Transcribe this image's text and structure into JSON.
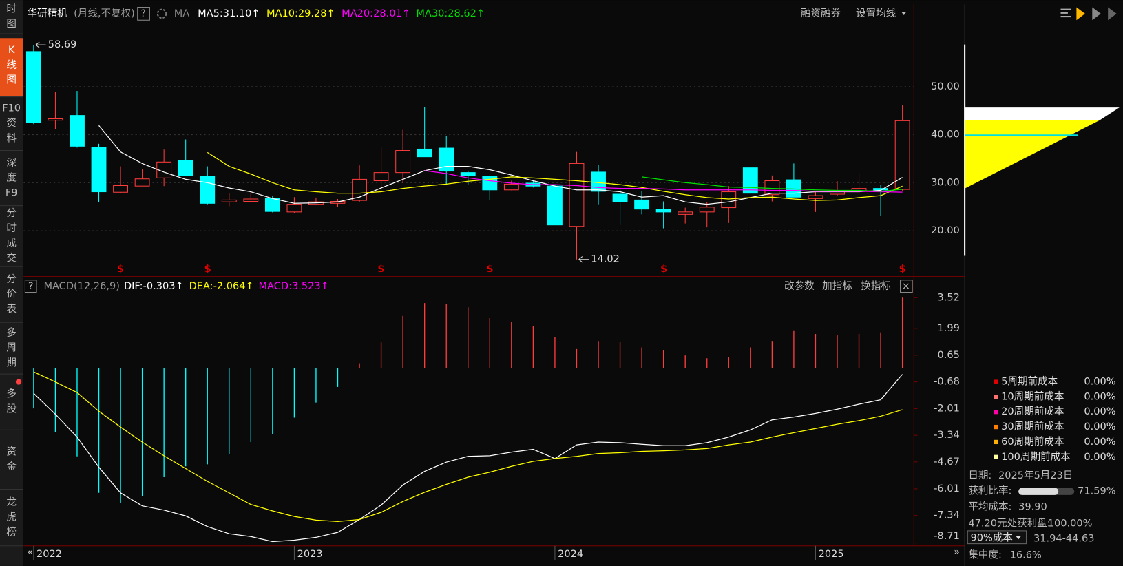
{
  "sidebar": {
    "tabs": [
      [
        "时",
        "图"
      ],
      [
        "K",
        "线",
        "图"
      ],
      [
        "F10",
        "资",
        "料"
      ],
      [
        "深",
        "度",
        "F9"
      ],
      [
        "分",
        "时",
        "成",
        "交"
      ],
      [
        "分",
        "价",
        "表"
      ],
      [
        "多",
        "周",
        "期"
      ],
      [
        "多",
        "股"
      ],
      [
        "资",
        "金"
      ],
      [
        "龙",
        "虎",
        "榜"
      ]
    ],
    "active_tab": 1
  },
  "header": {
    "stock": "华研精机",
    "period": "(月线,不复权)",
    "help": "?",
    "ma_label": "MA",
    "links": [
      "融资融券",
      "设置均线"
    ]
  },
  "macd_header": {
    "help": "?",
    "links": [
      "改参数",
      "加指标",
      "换指标"
    ],
    "close": "×"
  },
  "chart_data": [
    {
      "type": "candlestick",
      "grid": true,
      "up_color": "#ff3c3c",
      "down_color": "#00ffff",
      "open": [
        57.3,
        43.0,
        44.0,
        37.3,
        28.0,
        29.3,
        31.0,
        34.6,
        31.3,
        26.0,
        26.1,
        26.7,
        23.9,
        25.5,
        25.7,
        26.3,
        30.4,
        32.1,
        37.0,
        37.2,
        32.1,
        31.3,
        28.5,
        29.9,
        29.3,
        20.9,
        32.2,
        27.6,
        26.4,
        24.5,
        23.4,
        23.9,
        24.8,
        33.1,
        27.5,
        30.6,
        26.7,
        27.6,
        28.2,
        28.8,
        28.6
      ],
      "high": [
        58.69,
        48.9,
        49.1,
        38.1,
        33.4,
        32.8,
        36.9,
        39.0,
        33.4,
        27.8,
        28.0,
        27.3,
        27.0,
        26.9,
        26.6,
        33.6,
        37.5,
        41.0,
        45.7,
        39.7,
        32.5,
        31.5,
        30.4,
        30.4,
        29.6,
        36.4,
        33.7,
        29.0,
        28.2,
        26.1,
        24.8,
        26.0,
        29.3,
        33.1,
        31.5,
        34.0,
        28.2,
        30.3,
        32.0,
        29.5,
        46.1
      ],
      "low": [
        42.2,
        41.2,
        37.3,
        26.0,
        27.8,
        29.3,
        29.3,
        31.5,
        25.5,
        25.1,
        25.9,
        23.8,
        23.7,
        25.3,
        25.0,
        26.0,
        28.1,
        29.9,
        35.4,
        29.7,
        29.6,
        26.4,
        28.4,
        29.0,
        21.2,
        14.02,
        25.5,
        21.2,
        23.4,
        20.5,
        21.5,
        20.7,
        21.6,
        27.8,
        26.1,
        27.0,
        23.9,
        27.3,
        27.6,
        23.1,
        28.3
      ],
      "close": [
        42.5,
        43.3,
        37.6,
        28.1,
        29.4,
        30.8,
        34.3,
        31.5,
        25.7,
        26.4,
        26.6,
        24.0,
        25.5,
        26.0,
        26.1,
        30.7,
        32.1,
        36.7,
        35.4,
        32.4,
        31.5,
        28.5,
        29.7,
        29.3,
        21.2,
        34.0,
        28.2,
        26.1,
        24.5,
        23.9,
        23.9,
        24.9,
        28.1,
        27.8,
        30.4,
        27.0,
        27.3,
        28.2,
        28.8,
        28.5,
        42.9
      ],
      "series": [
        {
          "name": "MA5:31.10↑",
          "color": "#ffffff",
          "values": [
            null,
            null,
            null,
            41.9,
            36.4,
            34.0,
            32.2,
            30.7,
            30.0,
            28.9,
            28.1,
            26.7,
            25.7,
            25.8,
            26.0,
            27.0,
            28.9,
            30.7,
            32.5,
            33.4,
            33.4,
            32.7,
            31.6,
            30.4,
            29.3,
            28.5,
            28.5,
            28.1,
            27.0,
            27.3,
            26.0,
            25.5,
            26.0,
            26.9,
            27.8,
            27.8,
            28.1,
            28.1,
            28.1,
            28.4,
            31.1
          ]
        },
        {
          "name": "MA10:29.28↑",
          "color": "#ffff00",
          "values": [
            null,
            null,
            null,
            null,
            null,
            null,
            null,
            null,
            36.3,
            33.4,
            31.8,
            30.0,
            28.5,
            28.1,
            27.8,
            27.8,
            28.1,
            28.8,
            29.3,
            29.7,
            30.3,
            30.7,
            31.2,
            31.0,
            30.7,
            30.4,
            30.0,
            29.6,
            29.0,
            28.2,
            27.5,
            26.9,
            26.6,
            26.9,
            27.0,
            26.6,
            26.3,
            26.4,
            26.9,
            27.3,
            29.28
          ]
        },
        {
          "name": "MA20:28.01↑",
          "color": "#ff00ff",
          "values": [
            null,
            null,
            null,
            null,
            null,
            null,
            null,
            null,
            null,
            null,
            null,
            null,
            null,
            null,
            null,
            null,
            null,
            null,
            32.5,
            31.9,
            31.0,
            30.4,
            29.9,
            29.6,
            29.6,
            29.4,
            29.0,
            28.8,
            28.8,
            28.7,
            28.5,
            28.5,
            28.5,
            28.5,
            28.4,
            28.4,
            28.2,
            28.2,
            28.2,
            28.1,
            28.01
          ]
        },
        {
          "name": "MA30:28.62↑",
          "color": "#00e000",
          "values": [
            null,
            null,
            null,
            null,
            null,
            null,
            null,
            null,
            null,
            null,
            null,
            null,
            null,
            null,
            null,
            null,
            null,
            null,
            null,
            null,
            null,
            null,
            null,
            null,
            null,
            null,
            null,
            null,
            31.2,
            30.6,
            30.0,
            29.6,
            29.1,
            29.0,
            28.8,
            28.7,
            28.5,
            28.4,
            28.4,
            28.2,
            28.62
          ]
        }
      ],
      "ylim": [
        10.6,
        62.8
      ],
      "yticks": [
        {
          "value": 20,
          "label": "20.00"
        },
        {
          "value": 30,
          "label": "30.00"
        },
        {
          "value": 40,
          "label": "40.00"
        },
        {
          "value": 50,
          "label": "50.00"
        }
      ]
    },
    {
      "type": "macd",
      "title": "MACD(12,26,9)",
      "grid": false,
      "categories": [
        "2022",
        null,
        null,
        null,
        null,
        null,
        null,
        null,
        null,
        null,
        null,
        null,
        "2023",
        null,
        null,
        null,
        null,
        null,
        null,
        null,
        null,
        null,
        null,
        null,
        "2024",
        null,
        null,
        null,
        null,
        null,
        null,
        null,
        null,
        null,
        null,
        null,
        "2025",
        null,
        null,
        null,
        null
      ],
      "series": [
        {
          "name": "DIF:-0.303↑",
          "color": "#ffffff",
          "values": [
            -1.25,
            -2.29,
            -3.43,
            -4.93,
            -6.21,
            -6.86,
            -7.07,
            -7.36,
            -7.89,
            -8.25,
            -8.39,
            -8.64,
            -8.57,
            -8.43,
            -8.18,
            -7.54,
            -6.82,
            -5.82,
            -5.14,
            -4.68,
            -4.39,
            -4.36,
            -4.18,
            -4.04,
            -4.5,
            -3.82,
            -3.68,
            -3.71,
            -3.79,
            -3.86,
            -3.86,
            -3.71,
            -3.43,
            -3.07,
            -2.57,
            -2.43,
            -2.25,
            -2.04,
            -1.79,
            -1.57,
            -0.303
          ]
        },
        {
          "name": "DEA:-2.064↑",
          "color": "#ffff00",
          "values": [
            -0.18,
            -0.68,
            -1.21,
            -2.14,
            -2.93,
            -3.68,
            -4.36,
            -5.0,
            -5.64,
            -6.21,
            -6.79,
            -7.11,
            -7.39,
            -7.57,
            -7.64,
            -7.54,
            -7.18,
            -6.64,
            -6.18,
            -5.79,
            -5.43,
            -5.18,
            -4.89,
            -4.64,
            -4.5,
            -4.39,
            -4.25,
            -4.21,
            -4.14,
            -4.11,
            -4.07,
            -4.0,
            -3.82,
            -3.68,
            -3.43,
            -3.21,
            -3.0,
            -2.79,
            -2.61,
            -2.39,
            -2.064
          ]
        }
      ],
      "histogram": {
        "name": "MACD:3.523↑",
        "color": "#ff00ff",
        "up_color": "#ff3c3c",
        "down_color": "#00ffff",
        "values": [
          -2.0,
          -3.18,
          -4.39,
          -6.21,
          -6.71,
          -6.39,
          -5.43,
          -4.89,
          -4.79,
          -4.29,
          -3.68,
          -3.29,
          -2.46,
          -1.71,
          -0.93,
          0.25,
          1.29,
          2.61,
          3.25,
          3.21,
          3.04,
          2.5,
          2.32,
          2.11,
          1.57,
          0.96,
          1.36,
          1.32,
          1.04,
          0.89,
          0.64,
          0.5,
          0.57,
          1.04,
          1.36,
          1.89,
          1.71,
          1.64,
          1.71,
          1.79,
          3.523
        ]
      },
      "ylim": [
        -8.71,
        4.5
      ],
      "yticks": [
        3.52,
        1.99,
        0.65,
        -0.68,
        -2.01,
        -3.34,
        -4.67,
        -6.01,
        -7.34,
        -8.71
      ]
    }
  ],
  "cost_panel": {
    "legend": [
      {
        "label": "5周期前成本",
        "value": "0.00%",
        "color": "#e00000"
      },
      {
        "label": "10周期前成本",
        "value": "0.00%",
        "color": "#ff7070"
      },
      {
        "label": "20周期前成本",
        "value": "0.00%",
        "color": "#ff00aa"
      },
      {
        "label": "30周期前成本",
        "value": "0.00%",
        "color": "#ff7f00"
      },
      {
        "label": "60周期前成本",
        "value": "0.00%",
        "color": "#ffb000"
      },
      {
        "label": "100周期前成本",
        "value": "0.00%",
        "color": "#ffffa0"
      }
    ],
    "date_label": "日期:",
    "date": "2025年5月23日",
    "profit_label": "获利比率:",
    "profit_ratio": {
      "value": 71.59,
      "label": "71.59%"
    },
    "avg_cost_label": "平均成本:",
    "avg_cost": {
      "value": 39.9,
      "label": "39.90"
    },
    "profit_at_price": "47.20元处获利盘:",
    "profit_at_price_value": "100.00%",
    "range_select": "90%成本",
    "range": "31.94-44.63",
    "concentration_label": "集中度:",
    "concentration": "16.6%"
  }
}
